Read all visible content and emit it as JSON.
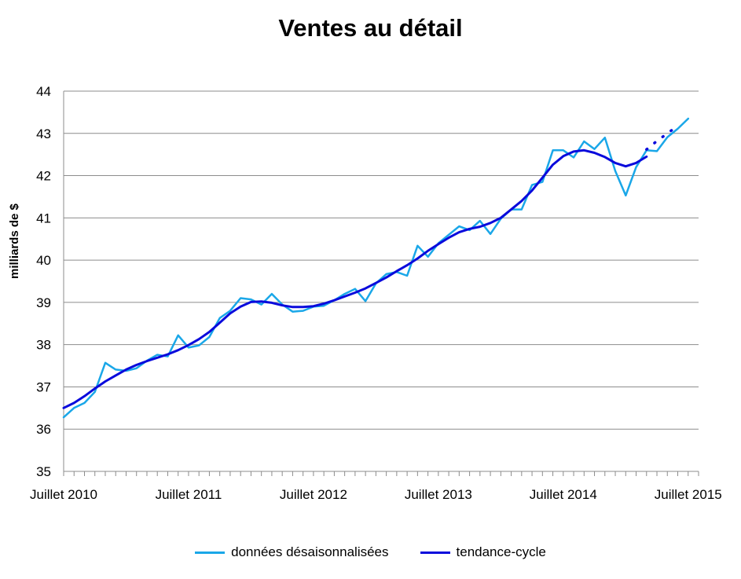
{
  "chart_data": {
    "type": "line",
    "title": "Ventes au détail",
    "xlabel": "",
    "ylabel": "milliards de $",
    "ylim": [
      35,
      44
    ],
    "yticks": [
      35,
      36,
      37,
      38,
      39,
      40,
      41,
      42,
      43,
      44
    ],
    "x_tick_labels": [
      "Juillet 2010",
      "Juillet 2011",
      "Juillet 2012",
      "Juillet 2013",
      "Juillet 2014",
      "Juillet 2015"
    ],
    "x_tick_months": [
      0,
      12,
      24,
      36,
      48,
      60
    ],
    "x_range_months": [
      0,
      61
    ],
    "grid": true,
    "legend_position": "bottom",
    "series": [
      {
        "name": "données désaisonnalisées",
        "color": "#1aa7e8",
        "style": "solid",
        "x_start": "2010-07",
        "values": [
          36.28,
          36.5,
          36.62,
          36.88,
          37.57,
          37.41,
          37.38,
          37.44,
          37.62,
          37.76,
          37.72,
          38.22,
          37.93,
          37.98,
          38.18,
          38.63,
          38.8,
          39.1,
          39.07,
          38.95,
          39.2,
          38.95,
          38.78,
          38.8,
          38.9,
          38.92,
          39.05,
          39.2,
          39.32,
          39.03,
          39.45,
          39.67,
          39.72,
          39.63,
          40.34,
          40.08,
          40.4,
          40.6,
          40.8,
          40.71,
          40.93,
          40.62,
          40.98,
          41.2,
          41.2,
          41.78,
          41.85,
          42.6,
          42.6,
          42.43,
          42.81,
          42.63,
          42.9,
          42.11,
          41.53,
          42.2,
          42.6,
          42.58,
          42.91,
          43.11,
          43.35
        ]
      },
      {
        "name": "tendance-cycle",
        "color": "#0a0adc",
        "style": "solid",
        "x_start": "2010-07",
        "values": [
          36.5,
          36.62,
          36.78,
          36.96,
          37.13,
          37.27,
          37.41,
          37.52,
          37.61,
          37.69,
          37.77,
          37.87,
          37.99,
          38.13,
          38.3,
          38.52,
          38.74,
          38.9,
          39.01,
          39.02,
          38.99,
          38.93,
          38.89,
          38.89,
          38.91,
          38.97,
          39.05,
          39.14,
          39.23,
          39.33,
          39.46,
          39.59,
          39.74,
          39.88,
          40.04,
          40.22,
          40.38,
          40.53,
          40.66,
          40.74,
          40.79,
          40.88,
          41.0,
          41.2,
          41.4,
          41.65,
          41.95,
          42.26,
          42.46,
          42.57,
          42.6,
          42.54,
          42.44,
          42.3,
          42.22,
          42.3,
          42.45
        ]
      },
      {
        "name": "",
        "color": "#0a0adc",
        "style": "dotted",
        "x_start": "2015-03",
        "values": [
          42.62,
          42.82,
          43.0,
          43.18
        ]
      }
    ]
  },
  "legend": [
    {
      "label": "données désaisonnalisées",
      "color": "#1aa7e8"
    },
    {
      "label": "tendance-cycle",
      "color": "#0a0adc"
    }
  ]
}
